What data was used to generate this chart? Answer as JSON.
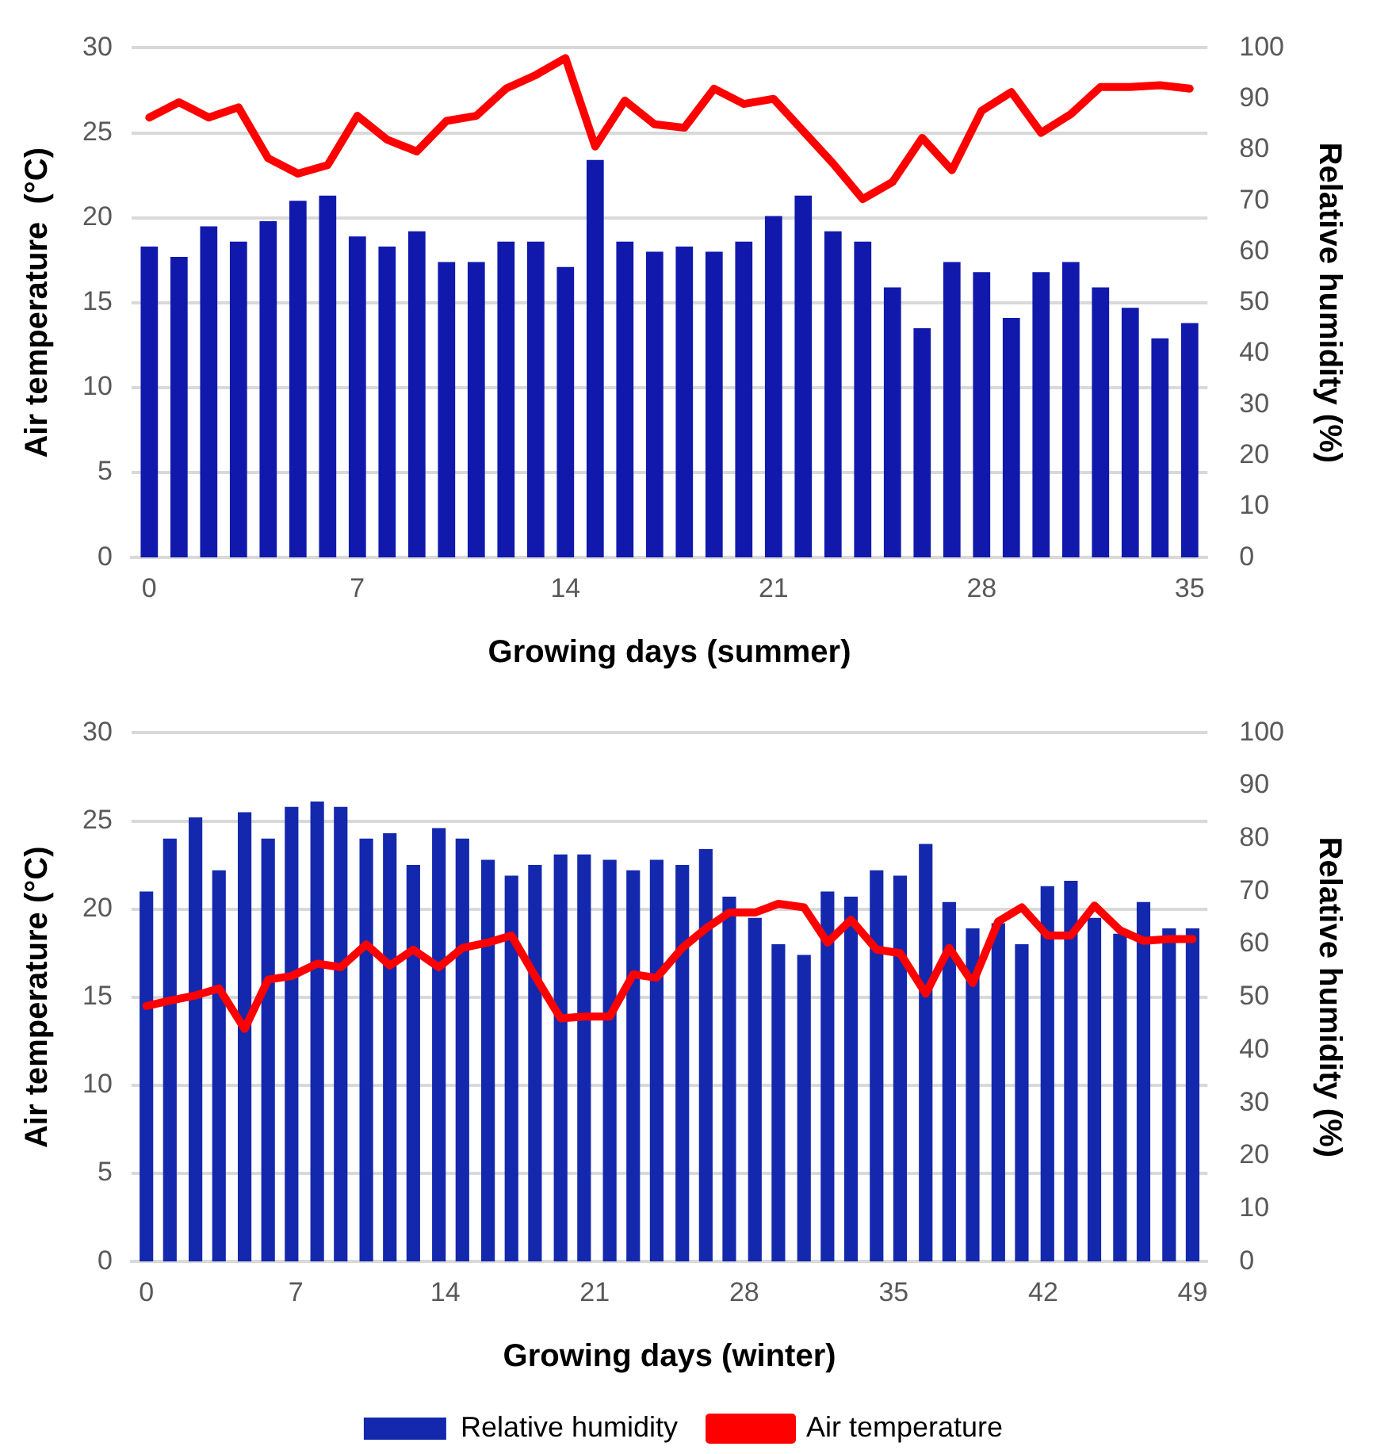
{
  "chart_data": [
    {
      "type": "bar",
      "xlabel": "Growing days (summer)",
      "ylabel": "Air temperature  (°C)",
      "y2label": "Relative humidity (%)",
      "x": [
        0,
        1,
        2,
        3,
        4,
        5,
        6,
        7,
        8,
        9,
        10,
        11,
        12,
        13,
        14,
        15,
        16,
        17,
        18,
        19,
        20,
        21,
        22,
        23,
        24,
        25,
        26,
        27,
        28,
        29,
        30,
        31,
        32,
        33,
        34,
        35
      ],
      "xlim": [
        -0.6,
        35.6
      ],
      "xticks": [
        0,
        7,
        14,
        21,
        28,
        35
      ],
      "ylim": [
        0,
        30
      ],
      "yticks": [
        0,
        5,
        10,
        15,
        20,
        25,
        30
      ],
      "y2lim": [
        0,
        100
      ],
      "y2ticks": [
        0,
        10,
        20,
        30,
        40,
        50,
        60,
        70,
        80,
        90,
        100
      ],
      "grid": "y",
      "legend": false,
      "marker": "none",
      "line_style": "solid",
      "series": [
        {
          "axis": "y2",
          "color": "#1119ad",
          "values": [
            61,
            59,
            65,
            62,
            66,
            70,
            71,
            63,
            61,
            64,
            58,
            58,
            62,
            62,
            57,
            78,
            62,
            60,
            61,
            60,
            62,
            67,
            71,
            64,
            62,
            53,
            45,
            58,
            56,
            47,
            56,
            58,
            53,
            49,
            43,
            46
          ]
        },
        {
          "type": "line",
          "axis": "y",
          "color": "#ff0000",
          "values": [
            25.9,
            26.8,
            25.9,
            26.5,
            23.5,
            22.6,
            23.1,
            26.0,
            24.6,
            23.9,
            25.7,
            26.0,
            27.6,
            28.4,
            29.4,
            24.2,
            26.9,
            25.5,
            25.3,
            27.6,
            26.7,
            27.0,
            25.1,
            23.2,
            21.1,
            22.1,
            24.7,
            22.8,
            26.3,
            27.4,
            25.0,
            26.1,
            27.7,
            27.7,
            27.8,
            27.6
          ]
        }
      ]
    },
    {
      "type": "bar",
      "xlabel": "Growing days (winter)",
      "ylabel": "Air temperature (°C)",
      "y2label": "Relative humidity (%)",
      "x": [
        0,
        1.1,
        2.3,
        3.4,
        4.6,
        5.7,
        6.8,
        8,
        9.1,
        10.3,
        11.4,
        12.5,
        13.7,
        14.8,
        16,
        17.1,
        18.2,
        19.4,
        20.5,
        21.7,
        22.8,
        23.9,
        25.1,
        26.2,
        27.3,
        28.5,
        29.6,
        30.8,
        31.9,
        33,
        34.2,
        35.3,
        36.5,
        37.6,
        38.7,
        39.9,
        41,
        42.2,
        43.3,
        44.4,
        45.6,
        46.7,
        47.9,
        49
      ],
      "xlim": [
        -0.7,
        49.7
      ],
      "xticks": [
        0,
        7,
        14,
        21,
        28,
        35,
        42,
        49
      ],
      "ylim": [
        0,
        30
      ],
      "yticks": [
        0,
        5,
        10,
        15,
        20,
        25,
        30
      ],
      "y2lim": [
        0,
        100
      ],
      "y2ticks": [
        0,
        10,
        20,
        30,
        40,
        50,
        60,
        70,
        80,
        90,
        100
      ],
      "grid": "y",
      "legend": "bottom",
      "marker": "none",
      "line_style": "solid",
      "series": [
        {
          "name": "Relative humidity",
          "axis": "y2",
          "color": "#1428ad",
          "values": [
            70,
            80,
            84,
            74,
            85,
            80,
            86,
            87,
            86,
            80,
            81,
            75,
            82,
            80,
            76,
            73,
            75,
            77,
            77,
            76,
            74,
            76,
            75,
            78,
            69,
            65,
            60,
            58,
            70,
            69,
            74,
            73,
            79,
            68,
            63,
            64,
            60,
            71,
            72,
            65,
            62,
            68,
            63,
            63
          ]
        },
        {
          "name": "Air temperature",
          "type": "line",
          "axis": "y",
          "color": "#ff0000",
          "values": [
            14.5,
            14.8,
            15.1,
            15.5,
            13.2,
            16.0,
            16.2,
            16.9,
            16.7,
            18.0,
            16.8,
            17.7,
            16.7,
            17.8,
            18.1,
            18.5,
            16.2,
            13.8,
            13.9,
            13.9,
            16.3,
            16.1,
            17.8,
            18.9,
            19.8,
            19.8,
            20.3,
            20.1,
            18.1,
            19.4,
            17.7,
            17.5,
            15.2,
            17.8,
            15.8,
            19.3,
            20.1,
            18.5,
            18.5,
            20.2,
            18.8,
            18.2,
            18.3,
            18.3
          ]
        }
      ]
    }
  ]
}
